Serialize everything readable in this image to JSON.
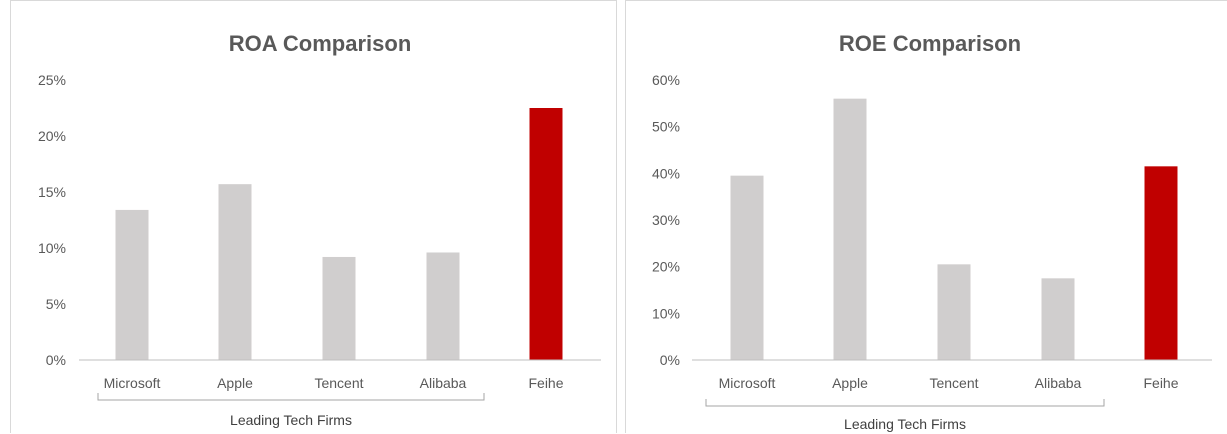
{
  "colors": {
    "default_bar": "#d0cece",
    "highlight_bar": "#c00000",
    "axis": "#bfbfbf",
    "bracket": "#a6a6a6",
    "text": "#595959"
  },
  "chart_data": [
    {
      "type": "bar",
      "title": "ROA Comparison",
      "categories": [
        "Microsoft",
        "Apple",
        "Tencent",
        "Alibaba",
        "Feihe"
      ],
      "values": [
        13.4,
        15.7,
        9.2,
        9.6,
        22.5
      ],
      "highlight": [
        "Feihe"
      ],
      "ylim": [
        0,
        25
      ],
      "yticks": [
        "0%",
        "5%",
        "10%",
        "15%",
        "20%",
        "25%"
      ],
      "group_label": "Leading Tech Firms",
      "grid": false
    },
    {
      "type": "bar",
      "title": "ROE Comparison",
      "categories": [
        "Microsoft",
        "Apple",
        "Tencent",
        "Alibaba",
        "Feihe"
      ],
      "values": [
        39.5,
        56,
        20.5,
        17.5,
        41.5
      ],
      "highlight": [
        "Feihe"
      ],
      "ylim": [
        0,
        60
      ],
      "yticks": [
        "0%",
        "10%",
        "20%",
        "30%",
        "40%",
        "50%",
        "60%"
      ],
      "group_label": "Leading Tech Firms",
      "grid": false
    }
  ]
}
